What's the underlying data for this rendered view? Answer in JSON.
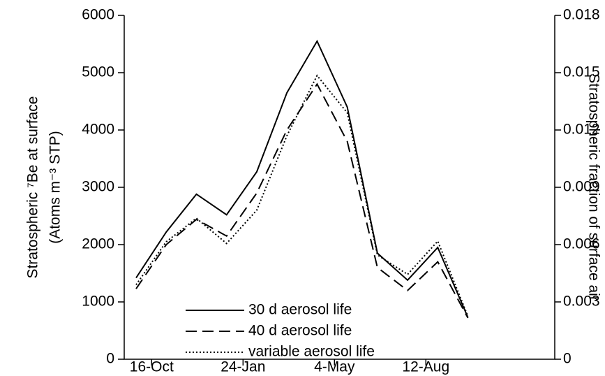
{
  "chart_data": {
    "type": "line",
    "y_label": "Stratospheric ⁷Be at surface",
    "y_label_units": "(Atoms m⁻³ STP)",
    "y2_label": "Stratospheric fraction of surface air",
    "x": [
      -17,
      16,
      49,
      82,
      115,
      148,
      181,
      214,
      247,
      280,
      313,
      346
    ],
    "xlim": [
      -30,
      441
    ],
    "xticks": [
      {
        "value": 0,
        "label": "16-Oct"
      },
      {
        "value": 100,
        "label": "24-Jan"
      },
      {
        "value": 200,
        "label": "4-May"
      },
      {
        "value": 300,
        "label": "12-Aug"
      }
    ],
    "ylim": [
      0,
      6000
    ],
    "yticks": [
      0,
      1000,
      2000,
      3000,
      4000,
      5000,
      6000
    ],
    "y2lim": [
      0,
      0.018
    ],
    "y2ticks": [
      0,
      0.003,
      0.006,
      0.009,
      0.012,
      0.015,
      0.018
    ],
    "series": [
      {
        "name": "30 d aerosol life",
        "color": "#000000",
        "style": "solid",
        "values": [
          1420,
          2220,
          2880,
          2520,
          3270,
          4650,
          5550,
          4400,
          1850,
          1380,
          1950,
          730
        ]
      },
      {
        "name": "40 d aerosol life",
        "color": "#000000",
        "style": "dashed",
        "values": [
          1230,
          2000,
          2440,
          2150,
          2900,
          4000,
          4800,
          3800,
          1600,
          1200,
          1700,
          720
        ]
      },
      {
        "name": "variable aerosol life",
        "color": "#000000",
        "style": "dotted",
        "values": [
          1300,
          2050,
          2460,
          2020,
          2600,
          3900,
          4950,
          4300,
          1820,
          1480,
          2060,
          750
        ]
      }
    ]
  }
}
